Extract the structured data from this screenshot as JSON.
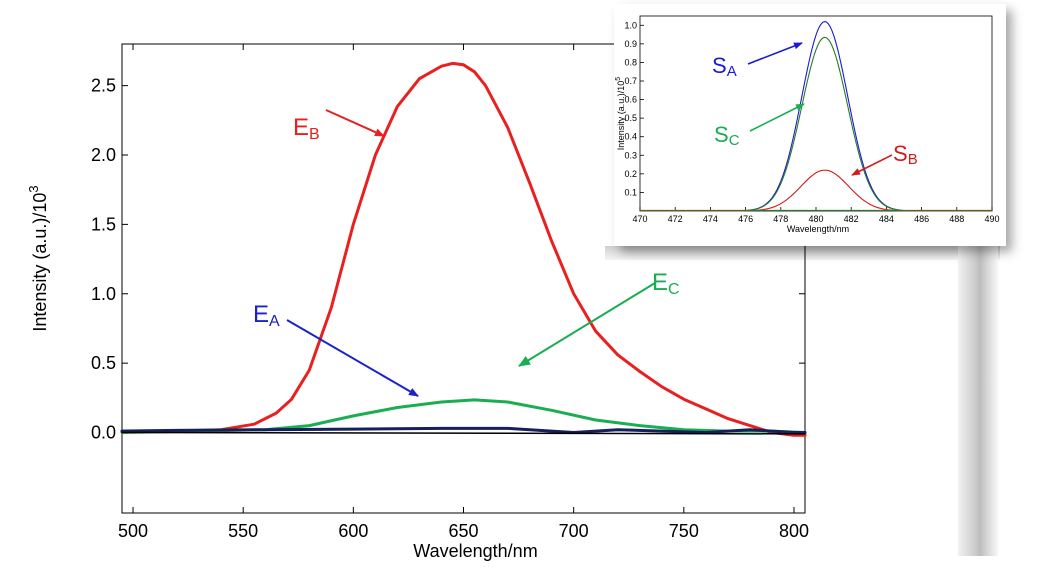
{
  "colors": {
    "red": "#e8201f",
    "green": "#1aad52",
    "blue": "#1a22c8",
    "navy": "#16205a",
    "black": "#000000",
    "inset_blue": "#1a1ad6",
    "inset_green": "#2a7a2a",
    "inset_red": "#d61a1a"
  },
  "chart_data": [
    {
      "type": "line",
      "xlabel": "Wavelength/nm",
      "ylabel": "Intensity (a.u.)/10",
      "ylabel_sup": "3",
      "xlim": [
        495,
        805
      ],
      "ylim": [
        -0.58,
        2.8
      ],
      "xticks": [
        500,
        550,
        600,
        650,
        700,
        750,
        800
      ],
      "yticks": [
        0.0,
        0.5,
        1.0,
        1.5,
        2.0,
        2.5
      ],
      "ytick_labels": [
        "0.0",
        "0.5",
        "1.0",
        "1.5",
        "2.0",
        "2.5"
      ],
      "series": [
        {
          "name": "E_B",
          "label_main": "E",
          "label_sub": "B",
          "color": "red",
          "x": [
            495,
            520,
            540,
            555,
            565,
            572,
            580,
            590,
            600,
            610,
            620,
            630,
            640,
            645,
            650,
            655,
            660,
            670,
            680,
            690,
            700,
            710,
            720,
            730,
            740,
            750,
            760,
            770,
            780,
            790,
            800,
            805
          ],
          "y": [
            0.01,
            0.01,
            0.02,
            0.06,
            0.14,
            0.24,
            0.45,
            0.9,
            1.5,
            2.0,
            2.35,
            2.55,
            2.64,
            2.66,
            2.65,
            2.6,
            2.5,
            2.2,
            1.8,
            1.38,
            1.0,
            0.73,
            0.56,
            0.44,
            0.33,
            0.24,
            0.17,
            0.1,
            0.05,
            0.0,
            -0.02,
            -0.02
          ]
        },
        {
          "name": "E_C",
          "label_main": "E",
          "label_sub": "C",
          "color": "green",
          "x": [
            495,
            530,
            560,
            580,
            600,
            620,
            640,
            655,
            670,
            690,
            710,
            730,
            750,
            770,
            790,
            805
          ],
          "y": [
            0.0,
            0.01,
            0.02,
            0.05,
            0.12,
            0.18,
            0.22,
            0.235,
            0.22,
            0.16,
            0.09,
            0.05,
            0.02,
            0.01,
            0.01,
            0.0
          ]
        },
        {
          "name": "E_A",
          "label_main": "E",
          "label_sub": "A",
          "color": "navy",
          "x": [
            495,
            520,
            560,
            600,
            640,
            670,
            690,
            700,
            720,
            740,
            760,
            780,
            800,
            805
          ],
          "y": [
            0.01,
            0.015,
            0.02,
            0.025,
            0.03,
            0.03,
            0.01,
            0.0,
            0.02,
            0.01,
            0.0,
            0.02,
            0.0,
            0.0
          ]
        },
        {
          "name": "baseline",
          "color": "black",
          "x": [
            495,
            805
          ],
          "y": [
            0.0,
            -0.01
          ]
        }
      ]
    },
    {
      "type": "line",
      "xlabel": "Wavelength/nm",
      "ylabel": "Intensity (a.u.)/10",
      "ylabel_sup": "5",
      "xlim": [
        470,
        490
      ],
      "ylim": [
        0.0,
        1.05
      ],
      "xticks": [
        470,
        472,
        474,
        476,
        478,
        480,
        482,
        484,
        486,
        488,
        490
      ],
      "yticks": [
        0.1,
        0.2,
        0.3,
        0.4,
        0.5,
        0.6,
        0.7,
        0.8,
        0.9,
        1.0
      ],
      "ytick_labels": [
        "0.1",
        "0.2",
        "0.3",
        "0.4",
        "0.5",
        "0.6",
        "0.7",
        "0.8",
        "0.9",
        "1.0"
      ],
      "series": [
        {
          "name": "S_A",
          "label_main": "S",
          "label_sub": "A",
          "color": "inset_blue",
          "center": 480.5,
          "sigma": 1.3,
          "amplitude": 1.02
        },
        {
          "name": "S_C",
          "label_main": "S",
          "label_sub": "C",
          "color": "inset_green",
          "center": 480.5,
          "sigma": 1.3,
          "amplitude": 0.935
        },
        {
          "name": "S_B",
          "label_main": "S",
          "label_sub": "B",
          "color": "inset_red",
          "center": 480.5,
          "sigma": 1.35,
          "amplitude": 0.22
        }
      ]
    }
  ]
}
